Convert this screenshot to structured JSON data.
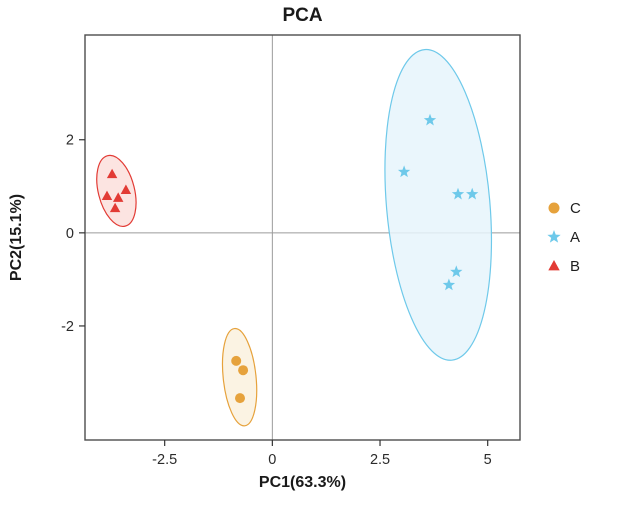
{
  "window": {
    "background": "#ffffff"
  },
  "chart_data": {
    "type": "scatter",
    "title": "PCA",
    "xlabel": "PC1(63.3%)",
    "ylabel": "PC2(15.1%)",
    "xlim": [
      -4.35,
      5.75
    ],
    "ylim": [
      -4.45,
      4.25
    ],
    "xticks": [
      -2.5,
      0,
      2.5,
      5
    ],
    "yticks": [
      -2,
      0,
      2
    ],
    "zero_line_color": "#9b9b9b",
    "panel_border_color": "#4d4d4d",
    "legend_position": "right",
    "legend_order": [
      "C",
      "A",
      "B"
    ],
    "series": [
      {
        "name": "C",
        "marker": "circle",
        "color": "#E6A23C",
        "ellipse_fill": "#FAF1DE",
        "points": [
          [
            -0.84,
            -2.75
          ],
          [
            -0.68,
            -2.95
          ],
          [
            -0.75,
            -3.55
          ]
        ],
        "ellipse": {
          "cx": -0.76,
          "cy": -3.1,
          "rx": 0.38,
          "ry": 1.05,
          "angle": -6
        }
      },
      {
        "name": "A",
        "marker": "star",
        "color": "#6EC9EA",
        "ellipse_fill": "#E6F5FB",
        "points": [
          [
            3.66,
            2.42
          ],
          [
            3.06,
            1.31
          ],
          [
            4.31,
            0.83
          ],
          [
            4.64,
            0.83
          ],
          [
            4.27,
            -0.84
          ],
          [
            4.1,
            -1.12
          ]
        ],
        "ellipse": {
          "cx": 3.85,
          "cy": 0.6,
          "rx": 1.2,
          "ry": 3.35,
          "angle": -5
        }
      },
      {
        "name": "B",
        "marker": "triangle",
        "color": "#E23B35",
        "ellipse_fill": "#FBDFDC",
        "points": [
          [
            -3.72,
            1.26
          ],
          [
            -3.84,
            0.79
          ],
          [
            -3.58,
            0.75
          ],
          [
            -3.4,
            0.92
          ],
          [
            -3.65,
            0.53
          ]
        ],
        "ellipse": {
          "cx": -3.62,
          "cy": 0.9,
          "rx": 0.42,
          "ry": 0.78,
          "angle": -14
        }
      }
    ]
  }
}
